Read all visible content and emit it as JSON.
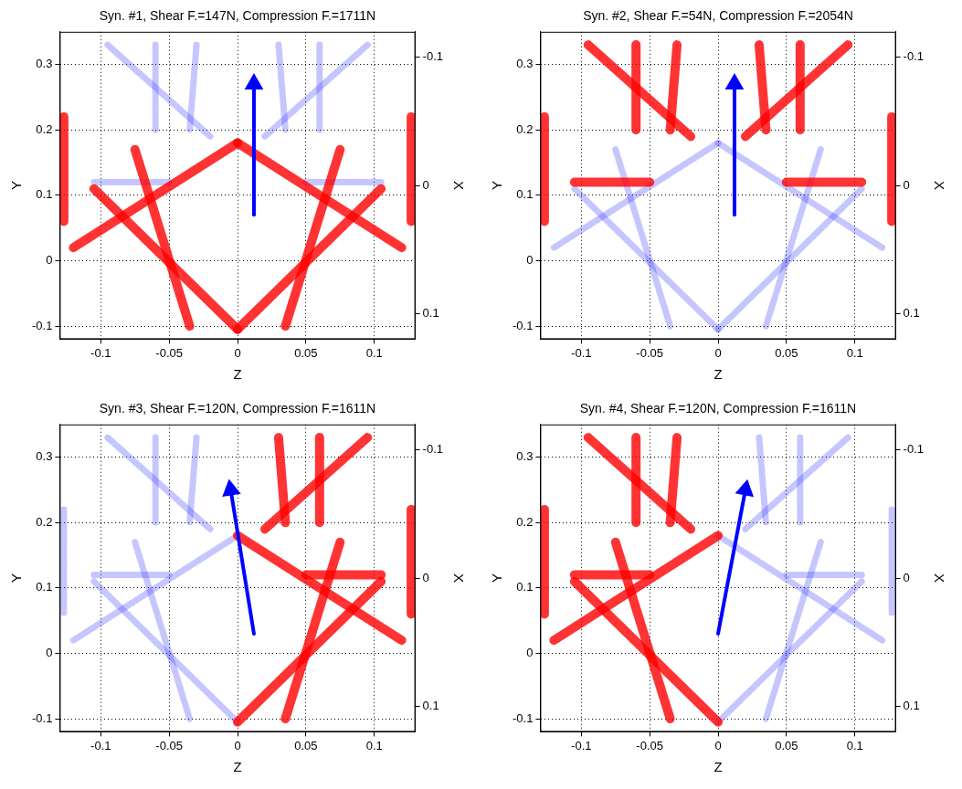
{
  "chart_data": [
    {
      "type": "line",
      "title": "Syn. #1, Shear F.=147N, Compression F.=1711N",
      "x_label": "Z",
      "y_label": "Y",
      "y2_label": "X",
      "xlim": [
        -0.13,
        0.13
      ],
      "xticks": [
        -0.1,
        -0.05,
        0,
        0.05,
        0.1
      ],
      "ylim": [
        -0.12,
        0.35
      ],
      "yticks": [
        -0.1,
        0,
        0.1,
        0.2,
        0.3
      ],
      "y2lim": [
        0.12,
        -0.12
      ],
      "y2ticks": [
        -0.1,
        0,
        0.1
      ],
      "grid": true,
      "series": [
        {
          "color": "#ff0000",
          "line_style": "filled",
          "marker": "none",
          "x": [
            -0.12,
            0.0
          ],
          "values": [
            0.02,
            0.18
          ]
        },
        {
          "color": "#ff0000",
          "line_style": "filled",
          "marker": "none",
          "x": [
            -0.075,
            -0.035
          ],
          "values": [
            0.17,
            -0.1
          ]
        },
        {
          "color": "#ff0000",
          "line_style": "filled",
          "marker": "none",
          "x": [
            -0.105,
            0.0
          ],
          "values": [
            0.11,
            -0.105
          ]
        },
        {
          "color": "#ff0000",
          "line_style": "filled",
          "marker": "none",
          "x": [
            -0.127,
            -0.127
          ],
          "values": [
            0.22,
            0.06
          ]
        },
        {
          "color": "#ff0000",
          "line_style": "filled",
          "marker": "none",
          "x": [
            0.12,
            0.0
          ],
          "values": [
            0.02,
            0.18
          ]
        },
        {
          "color": "#ff0000",
          "line_style": "filled",
          "marker": "none",
          "x": [
            0.075,
            0.035
          ],
          "values": [
            0.17,
            -0.1
          ]
        },
        {
          "color": "#ff0000",
          "line_style": "filled",
          "marker": "none",
          "x": [
            0.105,
            0.0
          ],
          "values": [
            0.11,
            -0.105
          ]
        },
        {
          "color": "#ff0000",
          "line_style": "filled",
          "marker": "none",
          "x": [
            0.127,
            0.127
          ],
          "values": [
            0.22,
            0.06
          ]
        },
        {
          "color": "#3333ff",
          "line_style": "mesh",
          "marker": "none",
          "x": [
            -0.095,
            -0.02
          ],
          "values": [
            0.33,
            0.19
          ]
        },
        {
          "color": "#3333ff",
          "line_style": "mesh",
          "marker": "none",
          "x": [
            -0.06,
            -0.06
          ],
          "values": [
            0.33,
            0.2
          ]
        },
        {
          "color": "#3333ff",
          "line_style": "mesh",
          "marker": "none",
          "x": [
            -0.03,
            -0.035
          ],
          "values": [
            0.33,
            0.2
          ]
        },
        {
          "color": "#3333ff",
          "line_style": "mesh",
          "marker": "none",
          "x": [
            -0.105,
            -0.05
          ],
          "values": [
            0.12,
            0.12
          ]
        },
        {
          "color": "#3333ff",
          "line_style": "mesh",
          "marker": "none",
          "x": [
            0.095,
            0.02
          ],
          "values": [
            0.33,
            0.19
          ]
        },
        {
          "color": "#3333ff",
          "line_style": "mesh",
          "marker": "none",
          "x": [
            0.06,
            0.06
          ],
          "values": [
            0.33,
            0.2
          ]
        },
        {
          "color": "#3333ff",
          "line_style": "mesh",
          "marker": "none",
          "x": [
            0.03,
            0.035
          ],
          "values": [
            0.33,
            0.2
          ]
        },
        {
          "color": "#3333ff",
          "line_style": "mesh",
          "marker": "none",
          "x": [
            0.105,
            0.05
          ],
          "values": [
            0.12,
            0.12
          ]
        },
        {
          "color": "#0000ff",
          "line_style": "solid",
          "marker": "triangle",
          "x": [
            0.012,
            0.012
          ],
          "values": [
            0.07,
            0.27
          ]
        }
      ]
    },
    {
      "type": "line",
      "title": "Syn. #2, Shear F.=54N, Compression F.=2054N",
      "x_label": "Z",
      "y_label": "Y",
      "y2_label": "X",
      "xlim": [
        -0.13,
        0.13
      ],
      "xticks": [
        -0.1,
        -0.05,
        0,
        0.05,
        0.1
      ],
      "ylim": [
        -0.12,
        0.35
      ],
      "yticks": [
        -0.1,
        0,
        0.1,
        0.2,
        0.3
      ],
      "y2lim": [
        0.12,
        -0.12
      ],
      "y2ticks": [
        -0.1,
        0,
        0.1
      ],
      "grid": true,
      "series": [
        {
          "color": "#3333ff",
          "line_style": "mesh",
          "marker": "none",
          "x": [
            -0.12,
            0.0
          ],
          "values": [
            0.02,
            0.18
          ]
        },
        {
          "color": "#3333ff",
          "line_style": "mesh",
          "marker": "none",
          "x": [
            -0.075,
            -0.035
          ],
          "values": [
            0.17,
            -0.1
          ]
        },
        {
          "color": "#3333ff",
          "line_style": "mesh",
          "marker": "none",
          "x": [
            -0.105,
            0.0
          ],
          "values": [
            0.11,
            -0.105
          ]
        },
        {
          "color": "#3333ff",
          "line_style": "mesh",
          "marker": "none",
          "x": [
            0.12,
            0.0
          ],
          "values": [
            0.02,
            0.18
          ]
        },
        {
          "color": "#3333ff",
          "line_style": "mesh",
          "marker": "none",
          "x": [
            0.075,
            0.035
          ],
          "values": [
            0.17,
            -0.1
          ]
        },
        {
          "color": "#3333ff",
          "line_style": "mesh",
          "marker": "none",
          "x": [
            0.105,
            0.0
          ],
          "values": [
            0.11,
            -0.105
          ]
        },
        {
          "color": "#ff0000",
          "line_style": "filled",
          "marker": "none",
          "x": [
            -0.127,
            -0.127
          ],
          "values": [
            0.22,
            0.06
          ]
        },
        {
          "color": "#ff0000",
          "line_style": "filled",
          "marker": "none",
          "x": [
            -0.095,
            -0.02
          ],
          "values": [
            0.33,
            0.19
          ]
        },
        {
          "color": "#ff0000",
          "line_style": "filled",
          "marker": "none",
          "x": [
            -0.06,
            -0.06
          ],
          "values": [
            0.33,
            0.2
          ]
        },
        {
          "color": "#ff0000",
          "line_style": "filled",
          "marker": "none",
          "x": [
            -0.03,
            -0.035
          ],
          "values": [
            0.33,
            0.2
          ]
        },
        {
          "color": "#ff0000",
          "line_style": "filled",
          "marker": "none",
          "x": [
            -0.105,
            -0.05
          ],
          "values": [
            0.12,
            0.12
          ]
        },
        {
          "color": "#ff0000",
          "line_style": "filled",
          "marker": "none",
          "x": [
            0.127,
            0.127
          ],
          "values": [
            0.22,
            0.06
          ]
        },
        {
          "color": "#ff0000",
          "line_style": "filled",
          "marker": "none",
          "x": [
            0.095,
            0.02
          ],
          "values": [
            0.33,
            0.19
          ]
        },
        {
          "color": "#ff0000",
          "line_style": "filled",
          "marker": "none",
          "x": [
            0.06,
            0.06
          ],
          "values": [
            0.33,
            0.2
          ]
        },
        {
          "color": "#ff0000",
          "line_style": "filled",
          "marker": "none",
          "x": [
            0.03,
            0.035
          ],
          "values": [
            0.33,
            0.2
          ]
        },
        {
          "color": "#ff0000",
          "line_style": "filled",
          "marker": "none",
          "x": [
            0.105,
            0.05
          ],
          "values": [
            0.12,
            0.12
          ]
        },
        {
          "color": "#0000ff",
          "line_style": "solid",
          "marker": "triangle",
          "x": [
            0.012,
            0.012
          ],
          "values": [
            0.07,
            0.27
          ]
        }
      ]
    },
    {
      "type": "line",
      "title": "Syn. #3, Shear F.=120N, Compression F.=1611N",
      "x_label": "Z",
      "y_label": "Y",
      "y2_label": "X",
      "xlim": [
        -0.13,
        0.13
      ],
      "xticks": [
        -0.1,
        -0.05,
        0,
        0.05,
        0.1
      ],
      "ylim": [
        -0.12,
        0.35
      ],
      "yticks": [
        -0.1,
        0,
        0.1,
        0.2,
        0.3
      ],
      "y2lim": [
        0.12,
        -0.12
      ],
      "y2ticks": [
        -0.1,
        0,
        0.1
      ],
      "grid": true,
      "series": [
        {
          "color": "#3333ff",
          "line_style": "mesh",
          "marker": "none",
          "x": [
            -0.12,
            0.0
          ],
          "values": [
            0.02,
            0.18
          ]
        },
        {
          "color": "#3333ff",
          "line_style": "mesh",
          "marker": "none",
          "x": [
            -0.075,
            -0.035
          ],
          "values": [
            0.17,
            -0.1
          ]
        },
        {
          "color": "#3333ff",
          "line_style": "mesh",
          "marker": "none",
          "x": [
            -0.105,
            0.0
          ],
          "values": [
            0.11,
            -0.105
          ]
        },
        {
          "color": "#3333ff",
          "line_style": "mesh",
          "marker": "none",
          "x": [
            -0.127,
            -0.127
          ],
          "values": [
            0.22,
            0.06
          ]
        },
        {
          "color": "#3333ff",
          "line_style": "mesh",
          "marker": "none",
          "x": [
            -0.095,
            -0.02
          ],
          "values": [
            0.33,
            0.19
          ]
        },
        {
          "color": "#3333ff",
          "line_style": "mesh",
          "marker": "none",
          "x": [
            -0.06,
            -0.06
          ],
          "values": [
            0.33,
            0.2
          ]
        },
        {
          "color": "#3333ff",
          "line_style": "mesh",
          "marker": "none",
          "x": [
            -0.03,
            -0.035
          ],
          "values": [
            0.33,
            0.2
          ]
        },
        {
          "color": "#3333ff",
          "line_style": "mesh",
          "marker": "none",
          "x": [
            -0.105,
            -0.05
          ],
          "values": [
            0.12,
            0.12
          ]
        },
        {
          "color": "#ff0000",
          "line_style": "filled",
          "marker": "none",
          "x": [
            0.12,
            0.0
          ],
          "values": [
            0.02,
            0.18
          ]
        },
        {
          "color": "#ff0000",
          "line_style": "filled",
          "marker": "none",
          "x": [
            0.075,
            0.035
          ],
          "values": [
            0.17,
            -0.1
          ]
        },
        {
          "color": "#ff0000",
          "line_style": "filled",
          "marker": "none",
          "x": [
            0.105,
            0.0
          ],
          "values": [
            0.11,
            -0.105
          ]
        },
        {
          "color": "#ff0000",
          "line_style": "filled",
          "marker": "none",
          "x": [
            0.127,
            0.127
          ],
          "values": [
            0.22,
            0.06
          ]
        },
        {
          "color": "#ff0000",
          "line_style": "filled",
          "marker": "none",
          "x": [
            0.095,
            0.02
          ],
          "values": [
            0.33,
            0.19
          ]
        },
        {
          "color": "#ff0000",
          "line_style": "filled",
          "marker": "none",
          "x": [
            0.06,
            0.06
          ],
          "values": [
            0.33,
            0.2
          ]
        },
        {
          "color": "#ff0000",
          "line_style": "filled",
          "marker": "none",
          "x": [
            0.03,
            0.035
          ],
          "values": [
            0.33,
            0.2
          ]
        },
        {
          "color": "#ff0000",
          "line_style": "filled",
          "marker": "none",
          "x": [
            0.105,
            0.05
          ],
          "values": [
            0.12,
            0.12
          ]
        },
        {
          "color": "#0000ff",
          "line_style": "solid",
          "marker": "triangle",
          "x": [
            0.012,
            -0.005
          ],
          "values": [
            0.03,
            0.25
          ]
        }
      ]
    },
    {
      "type": "line",
      "title": "Syn. #4, Shear F.=120N, Compression F.=1611N",
      "x_label": "Z",
      "y_label": "Y",
      "y2_label": "X",
      "xlim": [
        -0.13,
        0.13
      ],
      "xticks": [
        -0.1,
        -0.05,
        0,
        0.05,
        0.1
      ],
      "ylim": [
        -0.12,
        0.35
      ],
      "yticks": [
        -0.1,
        0,
        0.1,
        0.2,
        0.3
      ],
      "y2lim": [
        0.12,
        -0.12
      ],
      "y2ticks": [
        -0.1,
        0,
        0.1
      ],
      "grid": true,
      "series": [
        {
          "color": "#ff0000",
          "line_style": "filled",
          "marker": "none",
          "x": [
            -0.12,
            0.0
          ],
          "values": [
            0.02,
            0.18
          ]
        },
        {
          "color": "#ff0000",
          "line_style": "filled",
          "marker": "none",
          "x": [
            -0.075,
            -0.035
          ],
          "values": [
            0.17,
            -0.1
          ]
        },
        {
          "color": "#ff0000",
          "line_style": "filled",
          "marker": "none",
          "x": [
            -0.105,
            0.0
          ],
          "values": [
            0.11,
            -0.105
          ]
        },
        {
          "color": "#ff0000",
          "line_style": "filled",
          "marker": "none",
          "x": [
            -0.127,
            -0.127
          ],
          "values": [
            0.22,
            0.06
          ]
        },
        {
          "color": "#ff0000",
          "line_style": "filled",
          "marker": "none",
          "x": [
            -0.095,
            -0.02
          ],
          "values": [
            0.33,
            0.19
          ]
        },
        {
          "color": "#ff0000",
          "line_style": "filled",
          "marker": "none",
          "x": [
            -0.06,
            -0.06
          ],
          "values": [
            0.33,
            0.2
          ]
        },
        {
          "color": "#ff0000",
          "line_style": "filled",
          "marker": "none",
          "x": [
            -0.03,
            -0.035
          ],
          "values": [
            0.33,
            0.2
          ]
        },
        {
          "color": "#ff0000",
          "line_style": "filled",
          "marker": "none",
          "x": [
            -0.105,
            -0.05
          ],
          "values": [
            0.12,
            0.12
          ]
        },
        {
          "color": "#3333ff",
          "line_style": "mesh",
          "marker": "none",
          "x": [
            0.12,
            0.0
          ],
          "values": [
            0.02,
            0.18
          ]
        },
        {
          "color": "#3333ff",
          "line_style": "mesh",
          "marker": "none",
          "x": [
            0.075,
            0.035
          ],
          "values": [
            0.17,
            -0.1
          ]
        },
        {
          "color": "#3333ff",
          "line_style": "mesh",
          "marker": "none",
          "x": [
            0.105,
            0.0
          ],
          "values": [
            0.11,
            -0.105
          ]
        },
        {
          "color": "#3333ff",
          "line_style": "mesh",
          "marker": "none",
          "x": [
            0.127,
            0.127
          ],
          "values": [
            0.22,
            0.06
          ]
        },
        {
          "color": "#3333ff",
          "line_style": "mesh",
          "marker": "none",
          "x": [
            0.095,
            0.02
          ],
          "values": [
            0.33,
            0.19
          ]
        },
        {
          "color": "#3333ff",
          "line_style": "mesh",
          "marker": "none",
          "x": [
            0.06,
            0.06
          ],
          "values": [
            0.33,
            0.2
          ]
        },
        {
          "color": "#3333ff",
          "line_style": "mesh",
          "marker": "none",
          "x": [
            0.03,
            0.035
          ],
          "values": [
            0.33,
            0.2
          ]
        },
        {
          "color": "#3333ff",
          "line_style": "mesh",
          "marker": "none",
          "x": [
            0.105,
            0.05
          ],
          "values": [
            0.12,
            0.12
          ]
        },
        {
          "color": "#0000ff",
          "line_style": "solid",
          "marker": "triangle",
          "x": [
            0.0,
            0.02
          ],
          "values": [
            0.03,
            0.25
          ]
        }
      ]
    }
  ]
}
